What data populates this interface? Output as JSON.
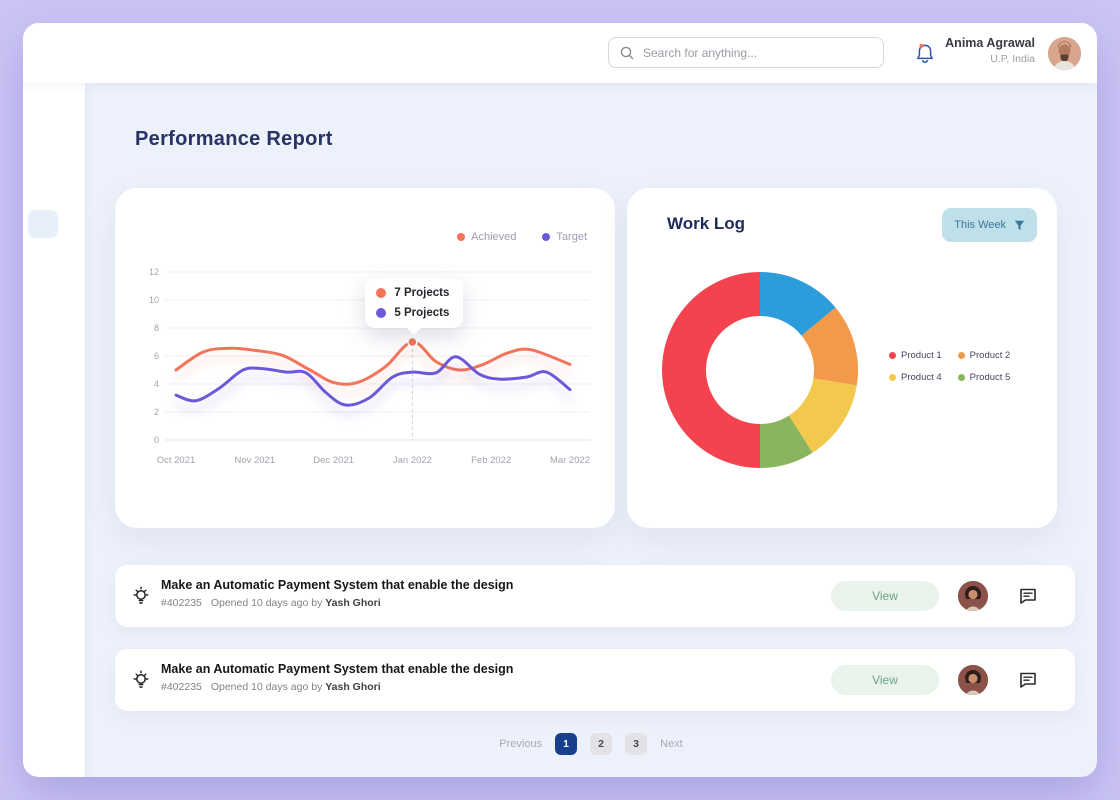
{
  "header": {
    "search_placeholder": "Search for anything...",
    "user_name": "Anima Agrawal",
    "user_location": "U.P, India"
  },
  "page": {
    "title": "Performance Report"
  },
  "perf_card": {
    "legend": [
      {
        "label": "Achieved",
        "color": "#F4745B"
      },
      {
        "label": "Target",
        "color": "#6A5AD9"
      }
    ],
    "tooltip": [
      {
        "label": "7 Projects",
        "color": "#F4745B"
      },
      {
        "label": "5 Projects",
        "color": "#6A5AD9"
      }
    ]
  },
  "chart_data": [
    {
      "type": "line",
      "title": "Performance Report",
      "categories": [
        "Oct 2021",
        "Nov 2021",
        "Dec 2021",
        "Jan 2022",
        "Feb 2022",
        "Mar 2022"
      ],
      "ylim": [
        0,
        12
      ],
      "yticks": [
        0,
        2,
        4,
        6,
        8,
        10,
        12
      ],
      "grid": true,
      "legend_position": "top-right",
      "series": [
        {
          "name": "Achieved",
          "color": "#F4745B",
          "x": [
            0,
            0.35,
            0.7,
            1.0,
            1.35,
            1.7,
            2.0,
            2.3,
            2.65,
            3.0,
            3.3,
            3.6,
            3.9,
            4.2,
            4.5,
            5.0
          ],
          "values": [
            5.0,
            6.3,
            6.55,
            6.4,
            6.05,
            5.0,
            4.1,
            4.1,
            5.2,
            7.0,
            5.6,
            5.0,
            5.4,
            6.2,
            6.45,
            5.4
          ]
        },
        {
          "name": "Target",
          "color": "#6A5AD9",
          "x": [
            0,
            0.25,
            0.55,
            0.85,
            1.1,
            1.4,
            1.65,
            1.9,
            2.15,
            2.45,
            2.75,
            3.0,
            3.3,
            3.55,
            3.85,
            4.1,
            4.45,
            4.7,
            5.0
          ],
          "values": [
            3.2,
            2.8,
            3.7,
            5.0,
            5.1,
            4.85,
            4.8,
            3.4,
            2.5,
            3.0,
            4.5,
            4.85,
            4.8,
            5.95,
            4.7,
            4.35,
            4.5,
            4.85,
            3.6
          ]
        }
      ],
      "annotation": {
        "x": 3,
        "achieved": 7,
        "target": 5,
        "tooltip_labels": [
          "7 Projects",
          "5 Projects"
        ]
      }
    },
    {
      "type": "pie",
      "title": "Work Log",
      "donut": true,
      "slices": [
        {
          "label": "",
          "color": "#2D9CDB",
          "value": 14
        },
        {
          "label": "Product 2",
          "color": "#F2994A",
          "value": 13.5
        },
        {
          "label": "Product 4",
          "color": "#F2C94C",
          "value": 13.5
        },
        {
          "label": "Product 5",
          "color": "#8AB55E",
          "value": 9
        },
        {
          "label": "Product 1",
          "color": "#F4434F",
          "value": 50
        }
      ]
    }
  ],
  "work_log": {
    "title": "Work Log",
    "filter_label": "This Week",
    "legend": [
      {
        "label": "Product 1",
        "color": "#F4434F"
      },
      {
        "label": "Product 2",
        "color": "#F2994A"
      },
      {
        "label": "Product 4",
        "color": "#F2C94C"
      },
      {
        "label": "Product 5",
        "color": "#8AB55E"
      }
    ]
  },
  "tasks": [
    {
      "title": "Make an Automatic Payment System that enable the design",
      "ticket": "#402235",
      "opened": "Opened 10 days ago by",
      "author": "Yash Ghori",
      "view_label": "View"
    },
    {
      "title": "Make an Automatic Payment System that enable the design",
      "ticket": "#402235",
      "opened": "Opened 10 days ago by",
      "author": "Yash Ghori",
      "view_label": "View"
    }
  ],
  "pagination": {
    "previous": "Previous",
    "pages": [
      "1",
      "2",
      "3"
    ],
    "active_index": 0,
    "next": "Next",
    "active_color": "#173F8C"
  }
}
